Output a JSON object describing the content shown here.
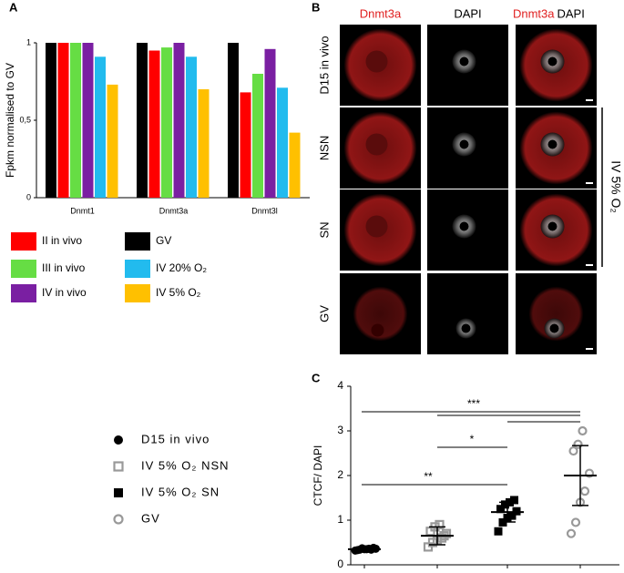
{
  "chart_data": [
    {
      "type": "bar",
      "label": "A",
      "y_label": "Fpkm normalised to GV",
      "categories": [
        "Dnmt1",
        "Dnmt3a",
        "Dnmt3l"
      ],
      "series": [
        {
          "name": "GV",
          "color": "#000000",
          "values": [
            1,
            1,
            1
          ]
        },
        {
          "name": "II in vivo",
          "color": "#ff0000",
          "values": [
            1,
            0.95,
            0.68
          ]
        },
        {
          "name": "III in vivo",
          "color": "#66dd44",
          "values": [
            1,
            0.97,
            0.8
          ]
        },
        {
          "name": "IV in vivo",
          "color": "#7a1fa2",
          "values": [
            1,
            1,
            0.96
          ]
        },
        {
          "name": "IV 20% O₂",
          "color": "#22bbee",
          "values": [
            0.91,
            0.91,
            0.71
          ]
        },
        {
          "name": "IV 5% O₂",
          "color": "#ffc000",
          "values": [
            0.73,
            0.7,
            0.42
          ]
        }
      ],
      "ylim": [
        0,
        1
      ],
      "yticks": [
        0,
        {
          "value": 0.5,
          "label": "0,5"
        },
        1
      ]
    },
    {
      "type": "dotplot",
      "label": "C",
      "y_label": "CTCF/ DAPI",
      "groups": [
        {
          "name": "D15 in vivo",
          "marker": "circle",
          "filled": true,
          "color": "#000000",
          "values": [
            0.32,
            0.34,
            0.35,
            0.36,
            0.38,
            0.33,
            0.37,
            0.35,
            0.34,
            0.36
          ],
          "mean": 0.35,
          "sd": 0.04
        },
        {
          "name": "IV 5% O₂ NSN",
          "marker": "square",
          "filled": false,
          "color": "#999999",
          "values": [
            0.4,
            0.5,
            0.55,
            0.6,
            0.7,
            0.75,
            0.85,
            0.9,
            0.65
          ],
          "mean": 0.65,
          "sd": 0.2
        },
        {
          "name": "IV 5% O₂ SN",
          "marker": "square",
          "filled": true,
          "color": "#000000",
          "values": [
            0.75,
            0.95,
            1.05,
            1.1,
            1.2,
            1.25,
            1.35,
            1.4,
            1.45
          ],
          "mean": 1.18,
          "sd": 0.22
        },
        {
          "name": "GV",
          "marker": "circle",
          "filled": false,
          "color": "#999999",
          "values": [
            0.7,
            0.95,
            1.4,
            1.65,
            2.05,
            2.55,
            2.7,
            3.0
          ],
          "mean": 2.0,
          "sd": 0.67
        }
      ],
      "annotations": [
        "**",
        "*",
        "***"
      ],
      "ylim": [
        0,
        4
      ],
      "yticks": [
        0,
        1,
        2,
        3,
        4
      ]
    }
  ],
  "panel_b": {
    "label": "B",
    "columns": [
      "Dnmt3a",
      "DAPI"
    ],
    "merged": [
      "Dnmt3a",
      "DAPI"
    ],
    "rows": [
      "D15 in vivo",
      "NSN",
      "SN",
      "GV"
    ],
    "side_label": "IV 5% O₂"
  }
}
